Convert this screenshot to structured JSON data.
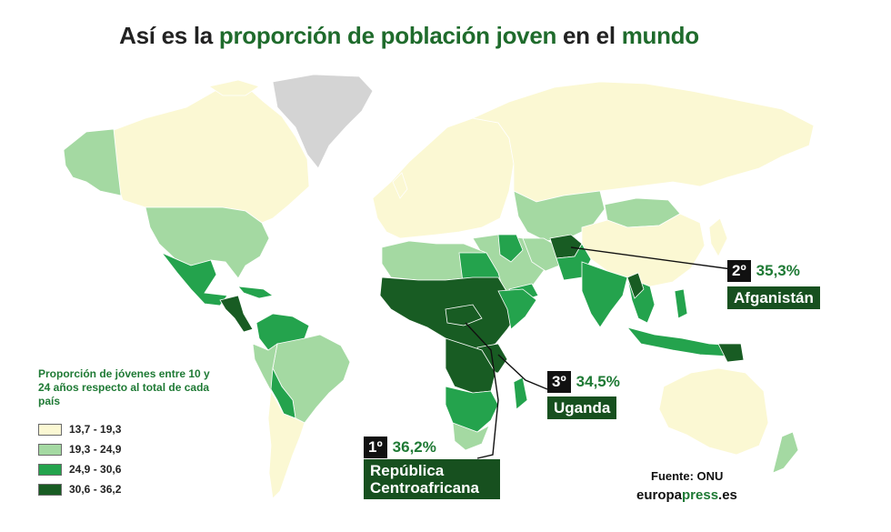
{
  "title": {
    "part1": "Así es la ",
    "part2": "proporción de población joven",
    "part3": " en el ",
    "part4": "mundo"
  },
  "legend": {
    "title": "Proporción de jóvenes entre 10 y 24 años respecto al total de cada país",
    "items": [
      {
        "label": "13,7 - 19,3",
        "color": "#fbf8d3"
      },
      {
        "label": "19,3 - 24,9",
        "color": "#a4d9a2"
      },
      {
        "label": "24,9 - 30,6",
        "color": "#24a34d"
      },
      {
        "label": "30,6 - 36,2",
        "color": "#185c23"
      }
    ]
  },
  "callouts": {
    "first": {
      "rank": "1º",
      "value": "36,2%",
      "country": "República Centroafricana"
    },
    "second": {
      "rank": "2º",
      "value": "35,3%",
      "country": "Afganistán"
    },
    "third": {
      "rank": "3º",
      "value": "34,5%",
      "country": "Uganda"
    }
  },
  "source": "Fuente: ONU",
  "brand": {
    "part1": "europa",
    "part2": "press",
    "part3": ".es"
  },
  "colors": {
    "nodata": "#d4d4d4"
  }
}
